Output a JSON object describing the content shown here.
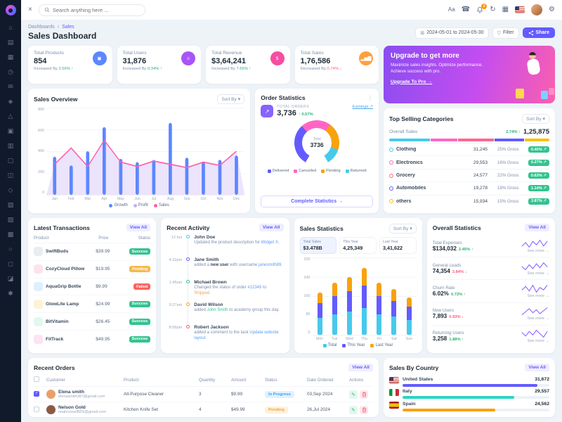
{
  "ui": {
    "chevron_down": "▾",
    "calendar": "⊞",
    "funnel": "▽",
    "kebab": "⋮",
    "close": "×",
    "language": "Aa",
    "call": "☎",
    "refresh": "↻",
    "apps": "▦",
    "gear": "⚙",
    "trend_arrow": "↗",
    "edit_glyph": "✎"
  },
  "sidebar": {
    "icons": [
      {
        "name": "sidebar-icon-home",
        "glyph": "⌂"
      },
      {
        "name": "sidebar-icon-dashboard",
        "glyph": "▤"
      },
      {
        "name": "sidebar-icon-apps",
        "glyph": "▦"
      },
      {
        "name": "sidebar-icon-clock",
        "glyph": "◷"
      },
      {
        "name": "sidebar-icon-mail",
        "glyph": "✉"
      },
      {
        "name": "sidebar-icon-lock",
        "glyph": "◈"
      },
      {
        "name": "sidebar-icon-alert",
        "glyph": "△"
      },
      {
        "name": "sidebar-icon-package",
        "glyph": "▣"
      },
      {
        "name": "sidebar-icon-notes",
        "glyph": "▥"
      },
      {
        "name": "sidebar-icon-file",
        "glyph": "▢"
      },
      {
        "name": "sidebar-icon-copy",
        "glyph": "◫"
      },
      {
        "name": "sidebar-icon-shield",
        "glyph": "◇"
      },
      {
        "name": "sidebar-icon-cart",
        "glyph": "▧"
      },
      {
        "name": "sidebar-icon-inbox",
        "glyph": "▨"
      },
      {
        "name": "sidebar-icon-archive",
        "glyph": "▩"
      },
      {
        "name": "sidebar-icon-user",
        "glyph": "○"
      },
      {
        "name": "sidebar-icon-table",
        "glyph": "◻"
      },
      {
        "name": "sidebar-icon-chart",
        "glyph": "◪"
      },
      {
        "name": "sidebar-icon-settings",
        "glyph": "✱"
      }
    ]
  },
  "topbar": {
    "search_placeholder": "Search anything here ...",
    "bell_badge": "2"
  },
  "page": {
    "breadcrumb_a": "Dashboards",
    "breadcrumb_sep": "›",
    "breadcrumb_b": "Sales",
    "title": "Sales Dashboard",
    "date_range": "2024-05-01 to 2024-05-30",
    "filter_label": "Filter",
    "share_label": "Share"
  },
  "kpis": [
    {
      "label": "Total Products",
      "value": "854",
      "delta": "Increased By",
      "pct": "2.56%",
      "arrow": "↑",
      "trend": "up",
      "color": "#5d87ff",
      "glyph": "▣"
    },
    {
      "label": "Total Users",
      "value": "31,876",
      "delta": "Increased By",
      "pct": "0.34%",
      "arrow": "↑",
      "trend": "up",
      "color": "#a855f7",
      "glyph": "☺"
    },
    {
      "label": "Total Revenue",
      "value": "$3,64,241",
      "delta": "Increased By",
      "pct": "7.66%",
      "arrow": "↑",
      "trend": "up",
      "color": "#f54ea2",
      "glyph": "$"
    },
    {
      "label": "Total Sales",
      "value": "1,76,586",
      "delta": "Decreased By",
      "pct": "0.74%",
      "arrow": "↓",
      "trend": "down",
      "color": "#ff9f40",
      "glyph": "▂▅▇"
    }
  ],
  "upgrade": {
    "title": "Upgrade to get more",
    "body": "Maximize sales insights. Optimize performance. Achieve success with pro.",
    "cta": "Upgrade To Pro →"
  },
  "sales_overview": {
    "title": "Sales Overview",
    "sort_label": "Sort By",
    "months": [
      "Jan",
      "Feb",
      "Mar",
      "Apr",
      "May",
      "Jun",
      "Jul",
      "Aug",
      "Sep",
      "Oct",
      "Nov",
      "Dec"
    ],
    "bars": [
      350,
      270,
      400,
      620,
      330,
      300,
      320,
      660,
      340,
      300,
      320,
      360
    ],
    "line": [
      280,
      430,
      260,
      500,
      300,
      260,
      310,
      280,
      250,
      300,
      270,
      400
    ],
    "y_ticks": [
      "800",
      "600",
      "400",
      "200",
      "0"
    ],
    "y_max": 800,
    "bar_color": "#5d87ff",
    "line_color": "#ff5fab",
    "area_fill": "#ece4fb",
    "legend": [
      {
        "label": "Growth",
        "color": "#5d87ff"
      },
      {
        "label": "Profit",
        "color": "#c3b2f2"
      },
      {
        "label": "Sales",
        "color": "#ff5fab"
      }
    ]
  },
  "order_statistics": {
    "title": "Order Statistics",
    "total_label": "TOTAL ORDERS",
    "total": "3,736",
    "arrow": "↑",
    "pct": "0.57%",
    "link": "Earnings ↗",
    "center_label": "Total",
    "center_value": "3736",
    "segments": [
      {
        "label": "Delivered",
        "value": 36,
        "color": "#635bff"
      },
      {
        "label": "Cancelled",
        "value": 26,
        "color": "#ff66c4"
      },
      {
        "label": "Pending",
        "value": 24,
        "color": "#f8a20c"
      },
      {
        "label": "Returned",
        "value": 14,
        "color": "#46caeb"
      }
    ],
    "cta": "Complete Statistics →"
  },
  "top_selling": {
    "title": "Top Selling Categories",
    "sort_label": "Sort By",
    "overall_label": "Overall Sales",
    "overall_pct": "2.74% ↑",
    "overall_value": "1,25,875",
    "rows": [
      {
        "name": "Clothing",
        "sales": "31,245",
        "gross": "25% Gross",
        "gross_num": 25,
        "badge": "0.45% ↗",
        "color": "#46caeb"
      },
      {
        "name": "Electronics",
        "sales": "29,553",
        "gross": "16% Gross",
        "gross_num": 16,
        "badge": "0.27% ↗",
        "color": "#ff66c4"
      },
      {
        "name": "Grocery",
        "sales": "24,577",
        "gross": "22% Gross",
        "gross_num": 22,
        "badge": "0.63% ↗",
        "color": "#ff6692"
      },
      {
        "name": "Automobiles",
        "sales": "19,278",
        "gross": "18% Gross",
        "gross_num": 18,
        "badge": "1.14% ↗",
        "color": "#635bff"
      },
      {
        "name": "others",
        "sales": "15,934",
        "gross": "15% Gross",
        "gross_num": 15,
        "badge": "3.87% ↗",
        "color": "#f8c20c"
      }
    ]
  },
  "latest_transactions": {
    "title": "Latest Transactions",
    "view_all": "View All",
    "columns": [
      "Product",
      "Price",
      "Status"
    ],
    "rows": [
      {
        "name": "SwiftBuds",
        "price": "$39.99",
        "status": "Success",
        "type": "success",
        "thumb": "#e9edf2"
      },
      {
        "name": "CozyCloud Pillow",
        "price": "$19.95",
        "status": "Pending",
        "type": "warn",
        "thumb": "#fde3ec"
      },
      {
        "name": "AquaGrip Bottle",
        "price": "$9.99",
        "status": "Failed",
        "type": "fail",
        "thumb": "#def0fd"
      },
      {
        "name": "GlowLite Lamp",
        "price": "$24.99",
        "status": "Success",
        "type": "success",
        "thumb": "#fdf3d8"
      },
      {
        "name": "BitVitamin",
        "price": "$26.45",
        "status": "Success",
        "type": "success",
        "thumb": "#e2f8ee"
      },
      {
        "name": "FitTrack",
        "price": "$49.95",
        "status": "Success",
        "type": "success",
        "thumb": "#fde3f4"
      }
    ]
  },
  "recent_activity": {
    "title": "Recent Activity",
    "view_all": "View All",
    "items": [
      {
        "time": "12 hrs",
        "color": "#46caeb",
        "name": "John Doe",
        "parts": [
          {
            "t": "Updated the product description for "
          },
          {
            "t": "Widget X",
            "c": "link"
          },
          {
            "t": "."
          }
        ]
      },
      {
        "time": "4:32pm",
        "color": "#635bff",
        "name": "Jane Smith",
        "parts": [
          {
            "t": "added a "
          },
          {
            "t": "new user",
            "c": "bold"
          },
          {
            "t": " with username "
          },
          {
            "t": "janesmith89",
            "c": "link"
          },
          {
            "t": "."
          }
        ]
      },
      {
        "time": "1:45am",
        "color": "#34c38f",
        "name": "Michael Brown",
        "parts": [
          {
            "t": "Changed the status of order "
          },
          {
            "t": "#12345",
            "c": "link"
          },
          {
            "t": " to "
          },
          {
            "t": "Shipped.",
            "c": "warn"
          }
        ]
      },
      {
        "time": "9:27am",
        "color": "#f8a20c",
        "name": "David Wilson",
        "parts": [
          {
            "t": "added "
          },
          {
            "t": "John Smith",
            "c": "green"
          },
          {
            "t": " to academy group this day."
          }
        ]
      },
      {
        "time": "8:56pm",
        "color": "#ff5b77",
        "name": "Robert Jackson",
        "parts": [
          {
            "t": "added a comment to the task "
          },
          {
            "t": "Update website layout.",
            "c": "link"
          }
        ]
      }
    ]
  },
  "sales_statistics": {
    "title": "Sales Statistics",
    "sort_label": "Sort By",
    "chips": [
      {
        "label": "Total Sales",
        "value": "$3.478B",
        "active": "active"
      },
      {
        "label": "This Year",
        "value": "4,25,349",
        "active": ""
      },
      {
        "label": "Last Year",
        "value": "3,41,622",
        "active": ""
      }
    ],
    "days": [
      "Mon",
      "Tue",
      "Wed",
      "Thu",
      "Fri",
      "Sat",
      "Sun"
    ],
    "stacks": [
      [
        70,
        60,
        45
      ],
      [
        85,
        75,
        55
      ],
      [
        95,
        85,
        60
      ],
      [
        110,
        95,
        70
      ],
      [
        85,
        75,
        55
      ],
      [
        75,
        65,
        50
      ],
      [
        60,
        55,
        40
      ]
    ],
    "colors": [
      "#46caeb",
      "#635bff",
      "#f8a20c"
    ],
    "y_ticks": [
      "320",
      "240",
      "160",
      "80",
      "0"
    ],
    "y_max": 320,
    "legend": [
      {
        "label": "Total",
        "color": "#46caeb"
      },
      {
        "label": "This Year",
        "color": "#635bff"
      },
      {
        "label": "Last Year",
        "color": "#f8a20c"
      }
    ]
  },
  "overall_statistics": {
    "title": "Overall Statistics",
    "view_all": "View All",
    "rows": [
      {
        "label": "Total Expenses",
        "value": "$134,032",
        "pct": "2.45% ↑",
        "trend": "up",
        "see": "See more →",
        "spark": "4,7,3,8,5,9,4,8"
      },
      {
        "label": "General Leads",
        "value": "74,354",
        "pct": "3.84% ↓",
        "trend": "down",
        "see": "See more →",
        "spark": "6,3,8,4,9,5,10,6"
      },
      {
        "label": "Churn Rate",
        "value": "6.02%",
        "pct": "0.72% ↑",
        "trend": "up",
        "see": "See more →",
        "spark": "5,8,4,9,3,7,5,9"
      },
      {
        "label": "New Users",
        "value": "7,893",
        "pct": "0.93% ↓",
        "trend": "down",
        "see": "See more →",
        "spark": "3,6,9,5,8,4,7,10"
      },
      {
        "label": "Returning Users",
        "value": "3,258",
        "pct": "1.88% ↑",
        "trend": "up",
        "see": "See more →",
        "spark": "7,4,8,5,9,6,3,8"
      }
    ]
  },
  "recent_orders": {
    "title": "Recent Orders",
    "view_all": "View All",
    "columns": [
      "Customer",
      "Product",
      "Quantity",
      "Amount",
      "Status",
      "Date Ordered",
      "Actions"
    ],
    "rows": [
      {
        "name": "Elena smith",
        "email": "elenasmith387@gmail.com",
        "product": "All-Purpose Cleaner",
        "qty": "3",
        "amount": "$9.99",
        "status": "In Progress",
        "type": "info",
        "date": "03,Sep 2024",
        "checked": "checked",
        "avatar": "#e8a06b"
      },
      {
        "name": "Nelson Gold",
        "email": "noahrussell555@gmail.com",
        "product": "Kitchen Knife Set",
        "qty": "4",
        "amount": "$49.99",
        "status": "Pending",
        "type": "pending",
        "date": "26,Jul 2024",
        "checked": "",
        "avatar": "#8a5a44"
      }
    ]
  },
  "sales_by_country": {
    "title": "Sales By Country",
    "view_all": "View All",
    "rows": [
      {
        "country": "United States",
        "value": "31,672",
        "flag": "us",
        "bar": "92%",
        "color": "#635bff"
      },
      {
        "country": "Italy",
        "value": "29,557",
        "flag": "it",
        "bar": "76%",
        "color": "#2bd6c2"
      },
      {
        "country": "Spain",
        "value": "24,562",
        "flag": "es",
        "bar": "63%",
        "color": "#f8a20c"
      }
    ]
  }
}
